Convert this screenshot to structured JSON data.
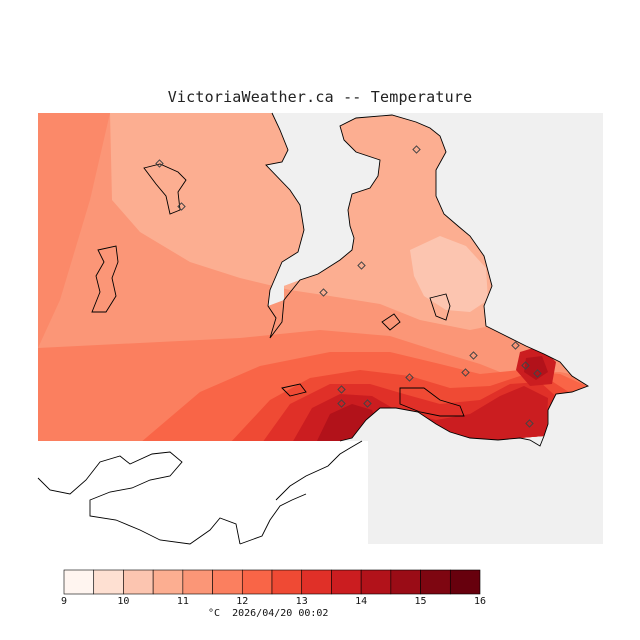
{
  "title": "VictoriaWeather.ca -- Temperature",
  "legend": {
    "unit": "°C",
    "timestamp": "2026/04/20 00:02",
    "ticks": [
      "9",
      "10",
      "11",
      "12",
      "13",
      "14",
      "15",
      "16"
    ],
    "ramp_colors": [
      "#fff5f0",
      "#fee0d2",
      "#fcc5b0",
      "#fcae91",
      "#fb9677",
      "#fb7f5f",
      "#f96547",
      "#ef4a34",
      "#e03028",
      "#cb1d20",
      "#b2121a",
      "#9a0c16",
      "#7e0611",
      "#67000d"
    ]
  },
  "colors": {
    "background": "#f0f0f0",
    "coast": "#000000",
    "station": "#444444"
  },
  "stations_count_note": ""
}
